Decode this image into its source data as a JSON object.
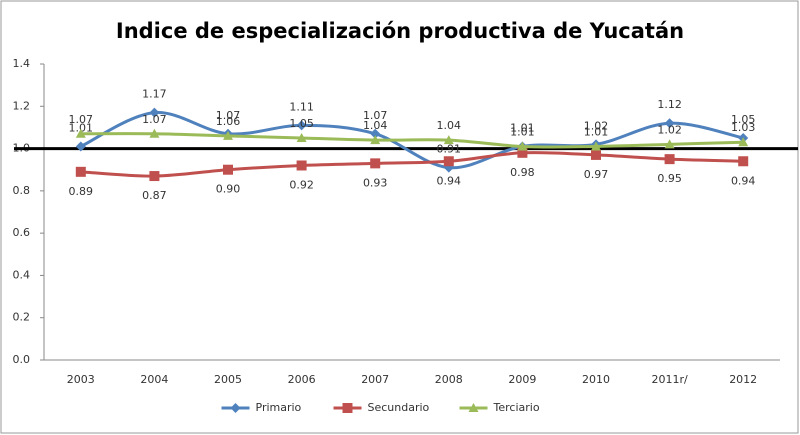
{
  "chart_data": {
    "type": "line",
    "title": "Indice de especialización productiva de Yucatán",
    "categories": [
      "2003",
      "2004",
      "2005",
      "2006",
      "2007",
      "2008",
      "2009",
      "2010",
      "2011r/",
      "2012"
    ],
    "series": [
      {
        "name": "Primario",
        "color": "#4f81bd",
        "marker": "diamond",
        "values": [
          1.01,
          1.17,
          1.07,
          1.11,
          1.07,
          0.91,
          1.01,
          1.02,
          1.12,
          1.05
        ],
        "value_labels": [
          "1.01",
          "1.17",
          "1.07",
          "1.11",
          "1.07",
          "0.91",
          "1.01",
          "1.02",
          "1.12",
          "1.05"
        ]
      },
      {
        "name": "Secundario",
        "color": "#c0504d",
        "marker": "square",
        "values": [
          0.89,
          0.87,
          0.9,
          0.92,
          0.93,
          0.94,
          0.98,
          0.97,
          0.95,
          0.94
        ],
        "value_labels": [
          "0.89",
          "0.87",
          "0.90",
          "0.92",
          "0.93",
          "0.94",
          "0.98",
          "0.97",
          "0.95",
          "0.94"
        ]
      },
      {
        "name": "Terciario",
        "color": "#9bbb59",
        "marker": "triangle",
        "values": [
          1.07,
          1.07,
          1.06,
          1.05,
          1.04,
          1.04,
          1.01,
          1.01,
          1.02,
          1.03
        ],
        "value_labels": [
          "1.07",
          "1.07",
          "1.06",
          "1.05",
          "1.04",
          "1.04",
          "1.01",
          "1.01",
          "1.02",
          "1.03"
        ]
      }
    ],
    "ylim": [
      0,
      1.4
    ],
    "yticks": [
      {
        "value": 0,
        "label": "0.0"
      },
      {
        "value": 0.2,
        "label": "0.2"
      },
      {
        "value": 0.4,
        "label": "0.4"
      },
      {
        "value": 0.6,
        "label": "0.6"
      },
      {
        "value": 0.8,
        "label": "0.8"
      },
      {
        "value": 1,
        "label": "1.0"
      },
      {
        "value": 1.2,
        "label": "1.2"
      },
      {
        "value": 1.4,
        "label": "1.4"
      }
    ],
    "reference_line": 1,
    "grid": false,
    "legend": "bottom"
  }
}
